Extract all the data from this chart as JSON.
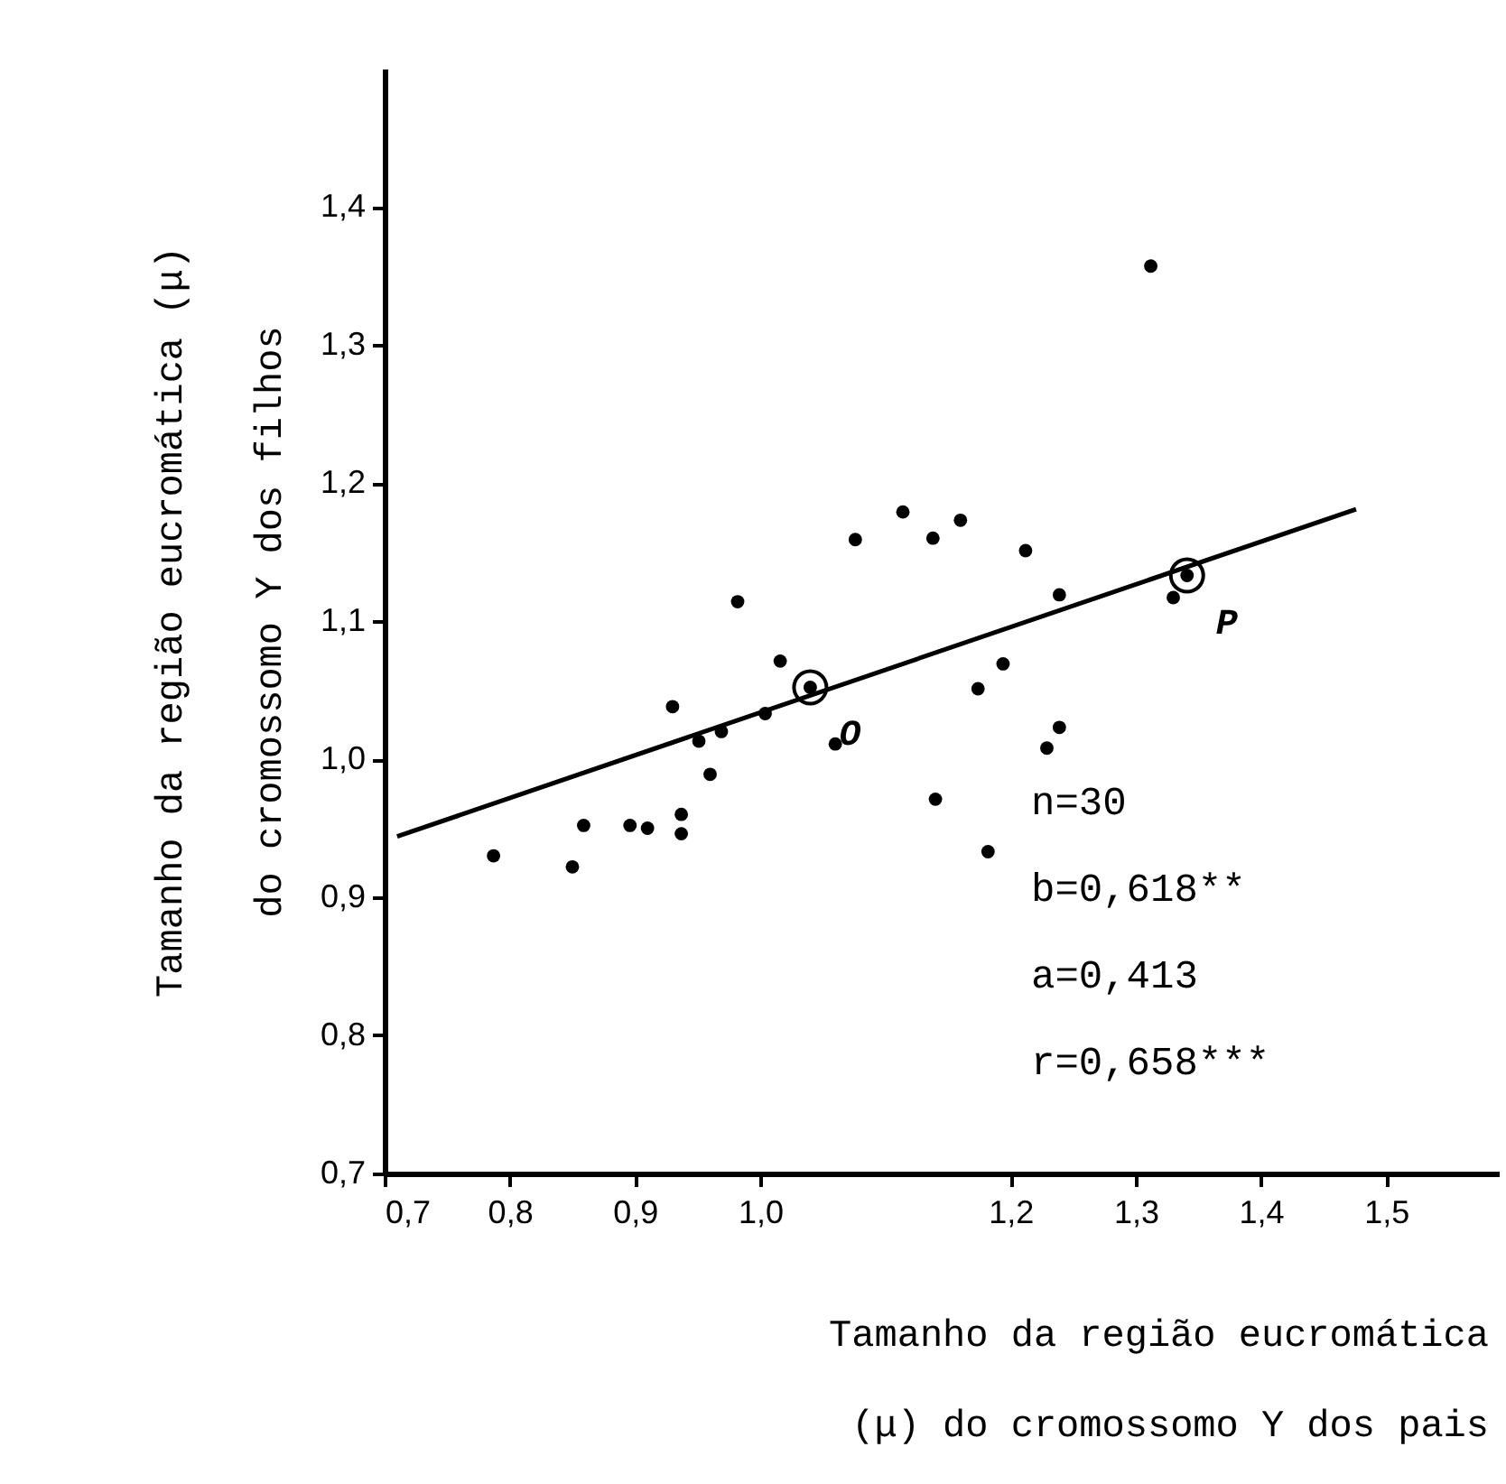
{
  "chart_data": {
    "type": "scatter",
    "xlabel": "Tamanho da região eucromática\n(μ) do cromossomo Y dos pais",
    "ylabel": "Tamanho da região eucromática (μ)\ndo cromossomo Y dos filhos",
    "xlim": [
      0.7,
      1.59
    ],
    "ylim": [
      0.7,
      1.5
    ],
    "xticks": [
      {
        "value": 0.7,
        "label": "0,7"
      },
      {
        "value": 0.8,
        "label": "0,8"
      },
      {
        "value": 0.9,
        "label": "0,9"
      },
      {
        "value": 1.0,
        "label": "1,0"
      },
      {
        "value": 1.2,
        "label": "1,2"
      },
      {
        "value": 1.3,
        "label": "1,3"
      },
      {
        "value": 1.4,
        "label": "1,4"
      },
      {
        "value": 1.5,
        "label": "1,5"
      }
    ],
    "yticks": [
      {
        "value": 0.7,
        "label": "0,7"
      },
      {
        "value": 0.8,
        "label": "0,8"
      },
      {
        "value": 0.9,
        "label": "0,9"
      },
      {
        "value": 1.0,
        "label": "1,0"
      },
      {
        "value": 1.1,
        "label": "1,1"
      },
      {
        "value": 1.2,
        "label": "1,2"
      },
      {
        "value": 1.3,
        "label": "1,3"
      },
      {
        "value": 1.4,
        "label": "1,4"
      }
    ],
    "grid": false,
    "series": [
      {
        "type": "scatter",
        "marker": "circle",
        "color": "#000000",
        "x": [
          0.787,
          0.85,
          0.859,
          0.896,
          0.91,
          0.937,
          0.937,
          0.93,
          0.951,
          0.969,
          0.96,
          0.982,
          1.016,
          1.04,
          1.004,
          1.06,
          1.076,
          1.114,
          1.138,
          1.16,
          1.212,
          1.239,
          1.194,
          1.174,
          1.14,
          1.182,
          1.229,
          1.239,
          1.312,
          1.33,
          1.341
        ],
        "values": [
          0.93,
          0.922,
          0.952,
          0.952,
          0.95,
          0.96,
          0.946,
          1.038,
          1.013,
          1.02,
          0.989,
          1.114,
          1.071,
          1.052,
          1.033,
          1.011,
          1.159,
          1.179,
          1.16,
          1.173,
          1.151,
          1.119,
          1.069,
          1.051,
          0.971,
          0.933,
          1.008,
          1.023,
          1.357,
          1.117,
          1.133
        ]
      },
      {
        "type": "line",
        "color": "#000000",
        "x": [
          0.71,
          1.476
        ],
        "values": [
          0.944,
          1.181
        ]
      }
    ],
    "annotations": [
      {
        "text": "O",
        "x": 1.04,
        "y": 1.052
      },
      {
        "text": "P",
        "x": 1.341,
        "y": 1.133
      },
      "n=30",
      "b=0,618**",
      "a=0,413",
      "r=0,658***"
    ]
  }
}
